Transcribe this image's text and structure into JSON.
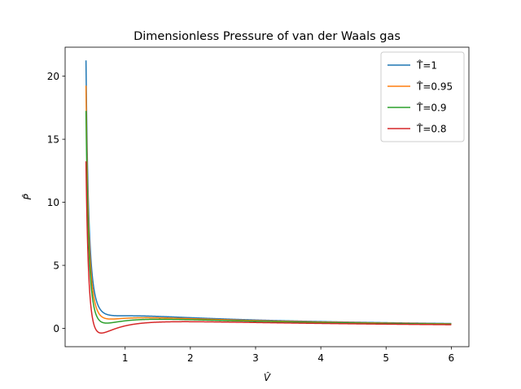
{
  "chart_data": {
    "type": "line",
    "title": "Dimensionless Pressure of van der Waals gas",
    "xlabel": "V̂",
    "ylabel": "P̂",
    "xlim": [
      0.08,
      6.27
    ],
    "ylim": [
      -1.45,
      22.3
    ],
    "xticks": [
      1,
      2,
      3,
      4,
      5,
      6
    ],
    "yticks": [
      0,
      5,
      10,
      15,
      20
    ],
    "grid": false,
    "legend_position": "top-right",
    "x_range": [
      0.4,
      6.0
    ],
    "series": [
      {
        "name": "T̂=1",
        "T": 1.0,
        "color": "#1f77b4"
      },
      {
        "name": "T̂=0.95",
        "T": 0.95,
        "color": "#ff7f0e"
      },
      {
        "name": "T̂=0.9",
        "T": 0.9,
        "color": "#2ca02c"
      },
      {
        "name": "T̂=0.8",
        "T": 0.8,
        "color": "#d62728"
      }
    ]
  }
}
